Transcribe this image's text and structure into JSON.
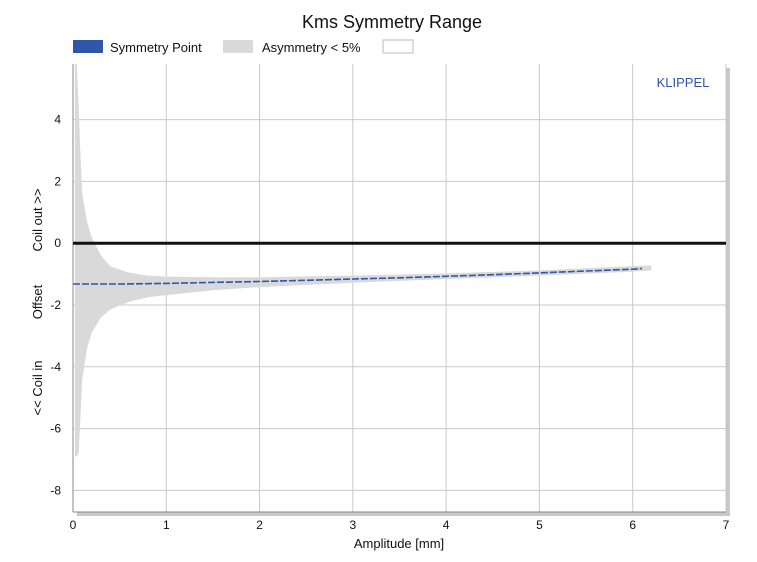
{
  "chart_data": {
    "type": "area",
    "title": "Kms Symmetry Range",
    "xlabel": "Amplitude [mm]",
    "ylabel_parts": [
      "<< Coil in",
      "Offset",
      "Coil out >>"
    ],
    "watermark": "KLIPPEL",
    "xlim": [
      0,
      7
    ],
    "ylim": [
      -8.7,
      5.8
    ],
    "x_ticks": [
      0,
      1,
      2,
      3,
      4,
      5,
      6,
      7
    ],
    "y_ticks": [
      -8,
      -6,
      -4,
      -2,
      0,
      2,
      4
    ],
    "grid": true,
    "legend_position": "top-left",
    "legend": [
      {
        "label": "Symmetry Point",
        "color": "#2f56a8"
      },
      {
        "label": "Asymmetry < 5%",
        "color": "#d9d9d9"
      },
      {
        "label": "",
        "color": "#ffffff"
      }
    ],
    "reference_line": {
      "y": 0,
      "color": "#111111"
    },
    "series": [
      {
        "name": "Symmetry Point",
        "color": "#2f56a8",
        "x": [
          0.0,
          0.5,
          1.0,
          1.5,
          2.0,
          2.5,
          3.0,
          3.5,
          4.0,
          4.5,
          5.0,
          5.5,
          6.0,
          6.1
        ],
        "y": [
          -1.32,
          -1.32,
          -1.3,
          -1.27,
          -1.24,
          -1.2,
          -1.16,
          -1.12,
          -1.07,
          -1.02,
          -0.96,
          -0.9,
          -0.84,
          -0.82
        ]
      },
      {
        "name": "Asymmetry < 5%",
        "color": "#d9d9d9",
        "x": [
          0.02,
          0.04,
          0.06,
          0.08,
          0.1,
          0.15,
          0.2,
          0.3,
          0.4,
          0.6,
          0.8,
          1.0,
          1.5,
          2.0,
          3.0,
          4.0,
          5.0,
          6.0,
          6.2
        ],
        "upper": [
          5.8,
          5.8,
          4.5,
          2.8,
          1.6,
          0.7,
          0.2,
          -0.4,
          -0.75,
          -0.95,
          -1.05,
          -1.08,
          -1.1,
          -1.1,
          -1.05,
          -0.98,
          -0.88,
          -0.74,
          -0.72
        ],
        "lower": [
          -6.9,
          -6.9,
          -6.8,
          -5.6,
          -4.4,
          -3.4,
          -2.9,
          -2.4,
          -2.15,
          -1.9,
          -1.75,
          -1.68,
          -1.52,
          -1.42,
          -1.28,
          -1.16,
          -1.05,
          -0.92,
          -0.88
        ]
      }
    ]
  }
}
